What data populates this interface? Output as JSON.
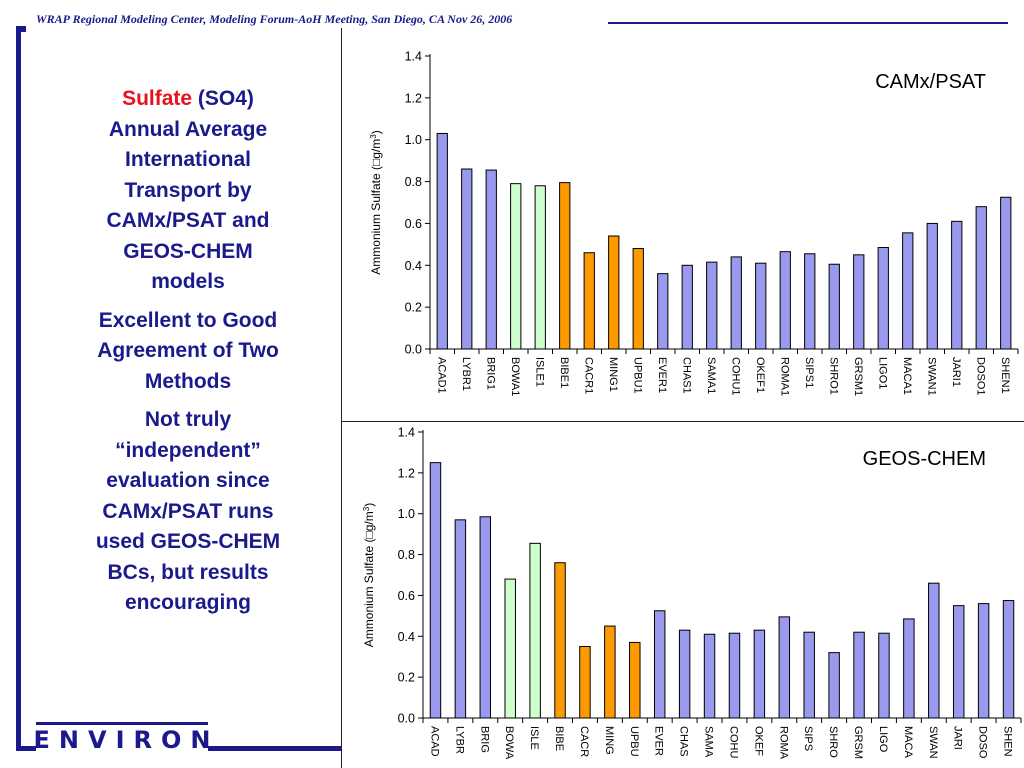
{
  "header": {
    "text": "WRAP Regional Modeling Center,  Modeling Forum-AoH Meeting, San Diego, CA  Nov 26, 2006"
  },
  "left_panel": {
    "title_sulfate": "Sulfate",
    "title_rest_lines": [
      "(SO4)",
      "Annual Average",
      "International",
      "Transport by",
      "CAMx/PSAT and",
      "GEOS-CHEM",
      "models"
    ],
    "para2_lines": [
      "Excellent to Good",
      "Agreement of Two",
      "Methods"
    ],
    "para3_lines": [
      "Not truly",
      "“independent”",
      "evaluation since",
      "CAMx/PSAT runs",
      "used GEOS-CHEM",
      "BCs, but results",
      "encouraging"
    ]
  },
  "logo": {
    "text": "ENVIRON"
  },
  "colors": {
    "brand_navy": "#1a1a8c",
    "accent_red": "#e8121e",
    "bar_purple": "#9999ee",
    "bar_green": "#ccffcc",
    "bar_orange": "#ff9900"
  },
  "chart_data": [
    {
      "type": "bar",
      "title": "CAMx/PSAT",
      "ylabel_main": "Ammonium Sulfate (",
      "ylabel_glyph": "□",
      "ylabel_unit": "g/m",
      "ylabel_sup": "3",
      "ylabel_close": ")",
      "ylim": [
        0,
        1.4
      ],
      "yticks": [
        "0.0",
        "0.2",
        "0.4",
        "0.6",
        "0.8",
        "1.0",
        "1.2",
        "1.4"
      ],
      "categories": [
        "ACAD1",
        "LYBR1",
        "BRIG1",
        "BOWA1",
        "ISLE1",
        "BIBE1",
        "CACR1",
        "MING1",
        "UPBU1",
        "EVER1",
        "CHAS1",
        "SAMA1",
        "COHU1",
        "OKEF1",
        "ROMA1",
        "SIPS1",
        "SHRO1",
        "GRSM1",
        "LIGO1",
        "MACA1",
        "SWAN1",
        "JARI1",
        "DOSO1",
        "SHEN1"
      ],
      "values": [
        1.03,
        0.86,
        0.855,
        0.79,
        0.78,
        0.795,
        0.46,
        0.54,
        0.48,
        0.36,
        0.4,
        0.415,
        0.44,
        0.41,
        0.465,
        0.455,
        0.405,
        0.45,
        0.485,
        0.555,
        0.6,
        0.61,
        0.68,
        0.725
      ],
      "bar_colors": [
        "purple",
        "purple",
        "purple",
        "green",
        "green",
        "orange",
        "orange",
        "orange",
        "orange",
        "purple",
        "purple",
        "purple",
        "purple",
        "purple",
        "purple",
        "purple",
        "purple",
        "purple",
        "purple",
        "purple",
        "purple",
        "purple",
        "purple",
        "purple"
      ],
      "grid": false
    },
    {
      "type": "bar",
      "title": "GEOS-CHEM",
      "ylabel_main": "Ammonium Sulfate (",
      "ylabel_glyph": "□",
      "ylabel_unit": "g/m",
      "ylabel_sup": "3",
      "ylabel_close": ")",
      "ylim": [
        0,
        1.4
      ],
      "yticks": [
        "0.0",
        "0.2",
        "0.4",
        "0.6",
        "0.8",
        "1.0",
        "1.2",
        "1.4"
      ],
      "categories": [
        "ACAD",
        "LYBR",
        "BRIG",
        "BOWA",
        "ISLE",
        "BIBE",
        "CACR",
        "MING",
        "UPBU",
        "EVER",
        "CHAS",
        "SAMA",
        "COHU",
        "OKEF",
        "ROMA",
        "SIPS",
        "SHRO",
        "GRSM",
        "LIGO",
        "MACA",
        "SWAN",
        "JARI",
        "DOSO",
        "SHEN"
      ],
      "values": [
        1.25,
        0.97,
        0.985,
        0.68,
        0.855,
        0.76,
        0.35,
        0.45,
        0.37,
        0.525,
        0.43,
        0.41,
        0.415,
        0.43,
        0.495,
        0.42,
        0.32,
        0.42,
        0.415,
        0.485,
        0.66,
        0.55,
        0.56,
        0.575
      ],
      "bar_colors": [
        "purple",
        "purple",
        "purple",
        "green",
        "green",
        "orange",
        "orange",
        "orange",
        "orange",
        "purple",
        "purple",
        "purple",
        "purple",
        "purple",
        "purple",
        "purple",
        "purple",
        "purple",
        "purple",
        "purple",
        "purple",
        "purple",
        "purple",
        "purple"
      ],
      "grid": false
    }
  ]
}
